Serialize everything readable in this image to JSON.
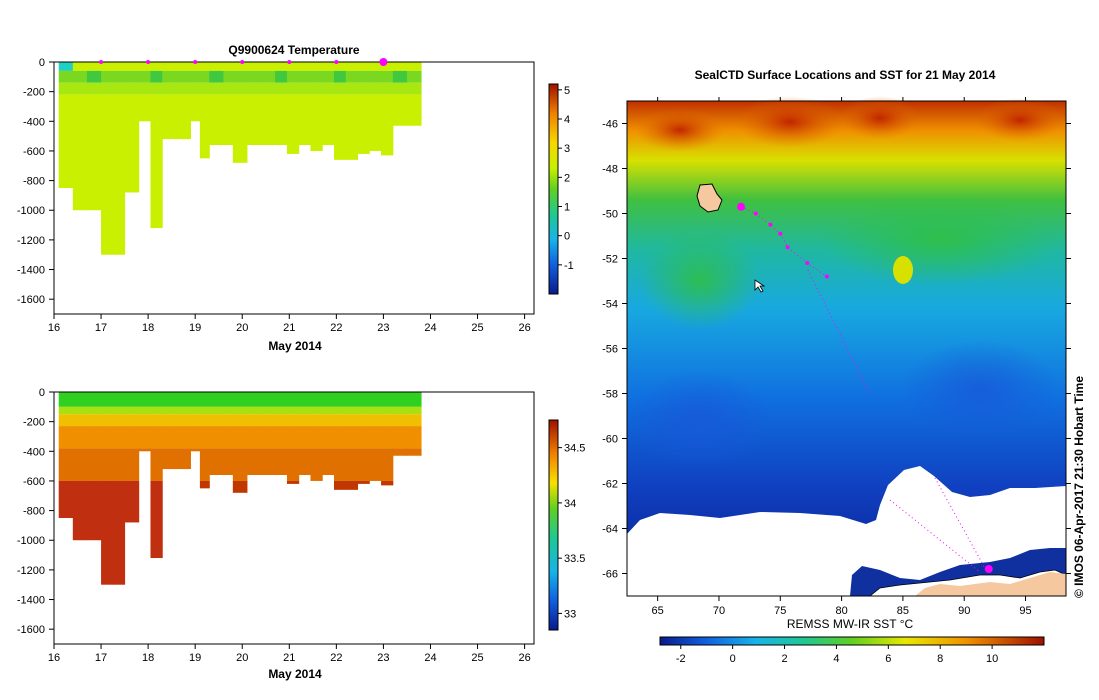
{
  "chart_data": [
    {
      "type": "heatmap",
      "title": "Q9900624  Temperature",
      "xlabel": "May 2014",
      "ylabel": "",
      "x_ticks": [
        "16",
        "17",
        "18",
        "19",
        "20",
        "21",
        "22",
        "23",
        "24",
        "25",
        "26"
      ],
      "y_ticks": [
        "0",
        "-200",
        "-400",
        "-600",
        "-800",
        "-1000",
        "-1200",
        "-1400",
        "-1600"
      ],
      "xlim": [
        16,
        26.2
      ],
      "ylim": [
        -1700,
        0
      ],
      "colorbar": {
        "ticks": [
          "-1",
          "0",
          "1",
          "2",
          "3",
          "4",
          "5"
        ],
        "range": [
          -2,
          5.2
        ]
      },
      "profile_markers_days": [
        17,
        18,
        19,
        20,
        21,
        22,
        23
      ],
      "profiles": [
        {
          "t": 16.1,
          "depth": 850
        },
        {
          "t": 16.4,
          "depth": 1000
        },
        {
          "t": 16.7,
          "depth": 1000
        },
        {
          "t": 17.0,
          "depth": 1300
        },
        {
          "t": 17.25,
          "depth": 1300
        },
        {
          "t": 17.5,
          "depth": 880
        },
        {
          "t": 17.8,
          "depth": 400
        },
        {
          "t": 18.05,
          "depth": 1120
        },
        {
          "t": 18.3,
          "depth": 520
        },
        {
          "t": 18.6,
          "depth": 520
        },
        {
          "t": 18.9,
          "depth": 400
        },
        {
          "t": 19.1,
          "depth": 650
        },
        {
          "t": 19.3,
          "depth": 560
        },
        {
          "t": 19.6,
          "depth": 560
        },
        {
          "t": 19.8,
          "depth": 680
        },
        {
          "t": 20.1,
          "depth": 560
        },
        {
          "t": 20.4,
          "depth": 560
        },
        {
          "t": 20.7,
          "depth": 560
        },
        {
          "t": 20.95,
          "depth": 620
        },
        {
          "t": 21.2,
          "depth": 560
        },
        {
          "t": 21.45,
          "depth": 600
        },
        {
          "t": 21.7,
          "depth": 560
        },
        {
          "t": 21.95,
          "depth": 660
        },
        {
          "t": 22.2,
          "depth": 660
        },
        {
          "t": 22.45,
          "depth": 620
        },
        {
          "t": 22.7,
          "depth": 600
        },
        {
          "t": 22.95,
          "depth": 630
        },
        {
          "t": 23.2,
          "depth": 430
        },
        {
          "t": 23.5,
          "depth": 430
        }
      ]
    },
    {
      "type": "heatmap",
      "title": "",
      "xlabel": "May 2014",
      "x_ticks": [
        "16",
        "17",
        "18",
        "19",
        "20",
        "21",
        "22",
        "23",
        "24",
        "25",
        "26"
      ],
      "y_ticks": [
        "0",
        "-200",
        "-400",
        "-600",
        "-800",
        "-1000",
        "-1200",
        "-1400",
        "-1600"
      ],
      "xlim": [
        16,
        26.2
      ],
      "ylim": [
        -1700,
        0
      ],
      "colorbar": {
        "ticks": [
          "33",
          "33.5",
          "34",
          "34.5"
        ],
        "range": [
          32.85,
          34.75
        ]
      }
    },
    {
      "type": "heatmap",
      "title": "SealCTD Surface Locations and SST for 21 May 2014",
      "xlabel": "REMSS MW-IR SST °C",
      "x_ticks": [
        "65",
        "70",
        "75",
        "80",
        "85",
        "90",
        "95"
      ],
      "y_ticks": [
        "-46",
        "-48",
        "-50",
        "-52",
        "-54",
        "-56",
        "-58",
        "-60",
        "-62",
        "-64",
        "-66"
      ],
      "xlim": [
        62.5,
        98.3
      ],
      "ylim": [
        -67.0,
        -45.0
      ],
      "colorbar": {
        "ticks": [
          "-2",
          "0",
          "2",
          "4",
          "6",
          "8",
          "10"
        ],
        "range": [
          -2.8,
          12
        ]
      },
      "track": [
        {
          "lon": 71.8,
          "lat": -49.7
        },
        {
          "lon": 73.0,
          "lat": -50.0
        },
        {
          "lon": 74.2,
          "lat": -50.5
        },
        {
          "lon": 75.0,
          "lat": -50.9
        },
        {
          "lon": 75.6,
          "lat": -51.5
        },
        {
          "lon": 77.2,
          "lat": -52.2
        },
        {
          "lon": 78.8,
          "lat": -52.8
        }
      ],
      "shelf_track_point": {
        "lon": 92.0,
        "lat": -65.8
      }
    }
  ],
  "labels": {
    "credit": "©  IMOS 06-Apr-2017 21:30 Hobart Time"
  },
  "colors": {
    "marker": "#ff00ff",
    "land": "#f5c8a0",
    "ice": "#ffffff"
  }
}
